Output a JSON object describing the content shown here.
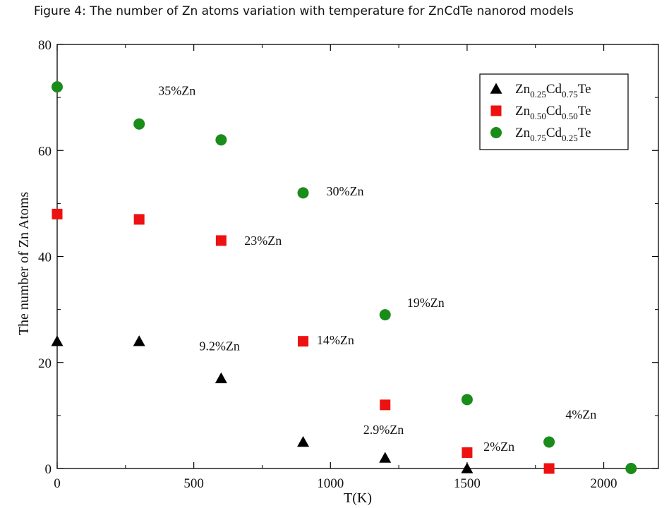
{
  "figure_caption": "Figure 4:  The number of Zn atoms variation with temperature for ZnCdTe nanorod models",
  "chart_data": {
    "type": "scatter",
    "xlabel": "T(K)",
    "ylabel": "The number of Zn Atoms",
    "xlim": [
      0,
      2200
    ],
    "ylim": [
      0,
      80
    ],
    "x_ticks": [
      0,
      500,
      1000,
      1500,
      2000
    ],
    "y_ticks": [
      0,
      20,
      40,
      60,
      80
    ],
    "grid": false,
    "legend_position": "top-right",
    "series": [
      {
        "name": "Zn0.25Cd0.75Te",
        "legend": {
          "a": "Zn",
          "a_sub": "0.25",
          "b": "Cd",
          "b_sub": "0.75",
          "c": "Te"
        },
        "marker": "triangle",
        "color": "#000000",
        "points": [
          [
            0,
            24
          ],
          [
            300,
            24
          ],
          [
            600,
            17
          ],
          [
            900,
            5
          ],
          [
            1200,
            2
          ],
          [
            1500,
            0
          ]
        ]
      },
      {
        "name": "Zn0.50Cd0.50Te",
        "legend": {
          "a": "Zn",
          "a_sub": "0.50",
          "b": "Cd",
          "b_sub": "0.50",
          "c": "Te"
        },
        "marker": "square",
        "color": "#ee1111",
        "points": [
          [
            0,
            48
          ],
          [
            300,
            47
          ],
          [
            600,
            43
          ],
          [
            900,
            24
          ],
          [
            1200,
            12
          ],
          [
            1500,
            3
          ],
          [
            1800,
            0
          ]
        ]
      },
      {
        "name": "Zn0.75Cd0.25Te",
        "legend": {
          "a": "Zn",
          "a_sub": "0.75",
          "b": "Cd",
          "b_sub": "0.25",
          "c": "Te"
        },
        "marker": "circle",
        "color": "#1a8c1a",
        "points": [
          [
            0,
            72
          ],
          [
            300,
            65
          ],
          [
            600,
            62
          ],
          [
            900,
            52
          ],
          [
            1200,
            29
          ],
          [
            1500,
            13
          ],
          [
            1800,
            5
          ],
          [
            2100,
            0
          ]
        ]
      }
    ],
    "annotations": [
      {
        "text": "35%Zn",
        "x": 370,
        "y": 70.5
      },
      {
        "text": "30%Zn",
        "x": 985,
        "y": 51.5
      },
      {
        "text": "23%Zn",
        "x": 685,
        "y": 42.2
      },
      {
        "text": "19%Zn",
        "x": 1280,
        "y": 30.5
      },
      {
        "text": "14%Zn",
        "x": 950,
        "y": 23.4
      },
      {
        "text": "9.2%Zn",
        "x": 520,
        "y": 22.3
      },
      {
        "text": "2.9%Zn",
        "x": 1120,
        "y": 6.5
      },
      {
        "text": "2%Zn",
        "x": 1560,
        "y": 3.3
      },
      {
        "text": "4%Zn",
        "x": 1860,
        "y": 9.4
      }
    ]
  }
}
